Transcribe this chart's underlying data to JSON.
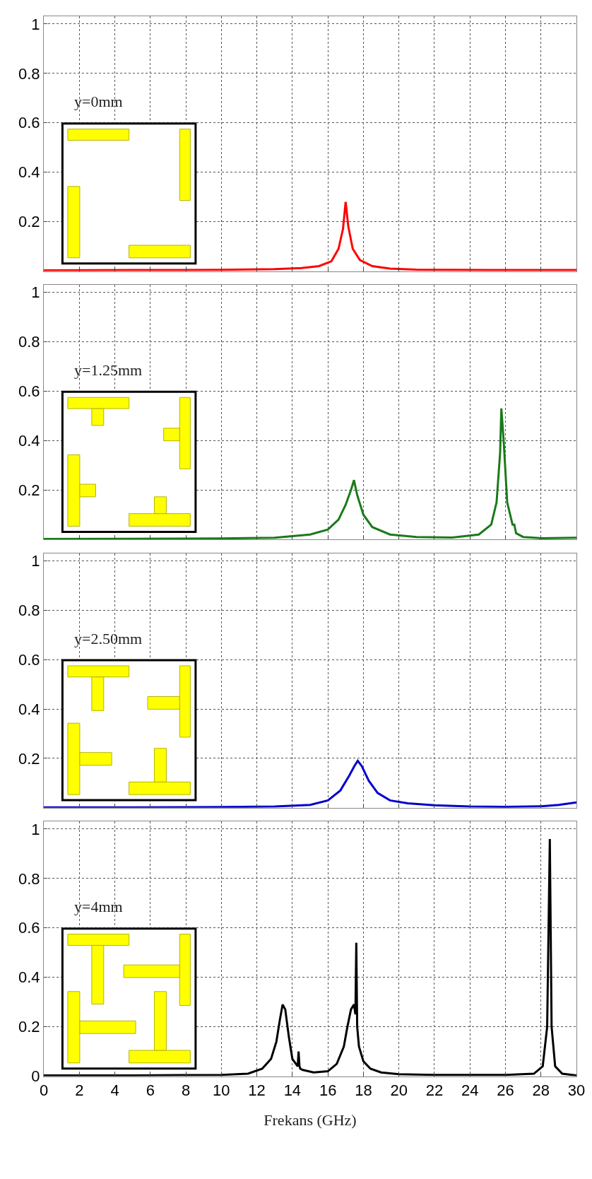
{
  "chart_data": [
    {
      "type": "line",
      "annotations": [
        "y=0mm"
      ],
      "xlim": [
        0,
        30
      ],
      "xticks": [
        0,
        2,
        4,
        6,
        8,
        10,
        12,
        14,
        16,
        18,
        20,
        22,
        24,
        26,
        28,
        30
      ],
      "ylim": [
        0,
        1.03
      ],
      "yticks": [
        0.2,
        0.4,
        0.6,
        0.8,
        1
      ],
      "grid": true,
      "tick_labels": "y",
      "series": [
        {
          "color": "#ff0000",
          "x": [
            0,
            5,
            10,
            13,
            14.5,
            15.5,
            16.2,
            16.6,
            16.85,
            17.0,
            17.15,
            17.4,
            17.8,
            18.5,
            19.5,
            21,
            25,
            30
          ],
          "values": [
            0.003,
            0.004,
            0.005,
            0.008,
            0.012,
            0.02,
            0.04,
            0.09,
            0.17,
            0.28,
            0.18,
            0.09,
            0.045,
            0.02,
            0.01,
            0.006,
            0.004,
            0.004
          ]
        }
      ]
    },
    {
      "type": "line",
      "annotations": [
        "y=1.25mm"
      ],
      "xlim": [
        0,
        30
      ],
      "xticks": [
        0,
        2,
        4,
        6,
        8,
        10,
        12,
        14,
        16,
        18,
        20,
        22,
        24,
        26,
        28,
        30
      ],
      "ylim": [
        0,
        1.03
      ],
      "yticks": [
        0.2,
        0.4,
        0.6,
        0.8,
        1
      ],
      "grid": true,
      "tick_labels": "y",
      "series": [
        {
          "color": "#1a7a1a",
          "x": [
            0,
            5,
            10,
            13,
            15,
            16,
            16.6,
            17.0,
            17.3,
            17.47,
            17.65,
            18.0,
            18.5,
            19.5,
            21,
            23,
            24.5,
            25.2,
            25.5,
            25.7,
            25.77,
            25.9,
            26.1,
            26.4,
            26.5,
            26.6,
            27,
            28,
            30
          ],
          "values": [
            0.002,
            0.003,
            0.004,
            0.007,
            0.02,
            0.04,
            0.08,
            0.14,
            0.2,
            0.24,
            0.18,
            0.1,
            0.05,
            0.02,
            0.01,
            0.008,
            0.02,
            0.06,
            0.15,
            0.35,
            0.53,
            0.4,
            0.15,
            0.06,
            0.06,
            0.025,
            0.01,
            0.005,
            0.007
          ]
        }
      ]
    },
    {
      "type": "line",
      "annotations": [
        "y=2.50mm"
      ],
      "xlim": [
        0,
        30
      ],
      "xticks": [
        0,
        2,
        4,
        6,
        8,
        10,
        12,
        14,
        16,
        18,
        20,
        22,
        24,
        26,
        28,
        30
      ],
      "ylim": [
        0,
        1.03
      ],
      "yticks": [
        0.2,
        0.4,
        0.6,
        0.8,
        1
      ],
      "grid": true,
      "tick_labels": "y",
      "series": [
        {
          "color": "#0000cc",
          "x": [
            0,
            5,
            10,
            13,
            15,
            16,
            16.7,
            17.2,
            17.5,
            17.68,
            17.9,
            18.3,
            18.8,
            19.5,
            20.5,
            22,
            24,
            26,
            28,
            29,
            30
          ],
          "values": [
            0.002,
            0.002,
            0.003,
            0.005,
            0.012,
            0.03,
            0.07,
            0.13,
            0.17,
            0.19,
            0.17,
            0.11,
            0.06,
            0.03,
            0.018,
            0.01,
            0.005,
            0.004,
            0.006,
            0.012,
            0.022
          ]
        }
      ]
    },
    {
      "type": "line",
      "annotations": [
        "y=4mm"
      ],
      "xlabel": "Frekans (GHz)",
      "xlim": [
        0,
        30
      ],
      "xticks": [
        0,
        2,
        4,
        6,
        8,
        10,
        12,
        14,
        16,
        18,
        20,
        22,
        24,
        26,
        28,
        30
      ],
      "ylim": [
        0,
        1.03
      ],
      "yticks": [
        0,
        0.2,
        0.4,
        0.6,
        0.8,
        1
      ],
      "grid": true,
      "series": [
        {
          "color": "#000000",
          "x": [
            0,
            5,
            10,
            11.5,
            12.3,
            12.8,
            13.1,
            13.3,
            13.45,
            13.6,
            13.8,
            14.0,
            14.3,
            14.35,
            14.4,
            14.45,
            14.6,
            15.2,
            16,
            16.5,
            16.9,
            17.1,
            17.3,
            17.47,
            17.55,
            17.6,
            17.65,
            17.75,
            18.0,
            18.4,
            19,
            20,
            22,
            26,
            27.6,
            28.1,
            28.35,
            28.5,
            28.6,
            28.8,
            29.2,
            30
          ],
          "values": [
            0.003,
            0.003,
            0.005,
            0.01,
            0.03,
            0.07,
            0.14,
            0.23,
            0.29,
            0.27,
            0.16,
            0.07,
            0.04,
            0.1,
            0.04,
            0.03,
            0.025,
            0.015,
            0.02,
            0.05,
            0.12,
            0.2,
            0.27,
            0.29,
            0.25,
            0.54,
            0.2,
            0.12,
            0.06,
            0.03,
            0.015,
            0.008,
            0.005,
            0.005,
            0.01,
            0.04,
            0.2,
            0.96,
            0.2,
            0.04,
            0.01,
            0.003
          ]
        }
      ]
    }
  ]
}
